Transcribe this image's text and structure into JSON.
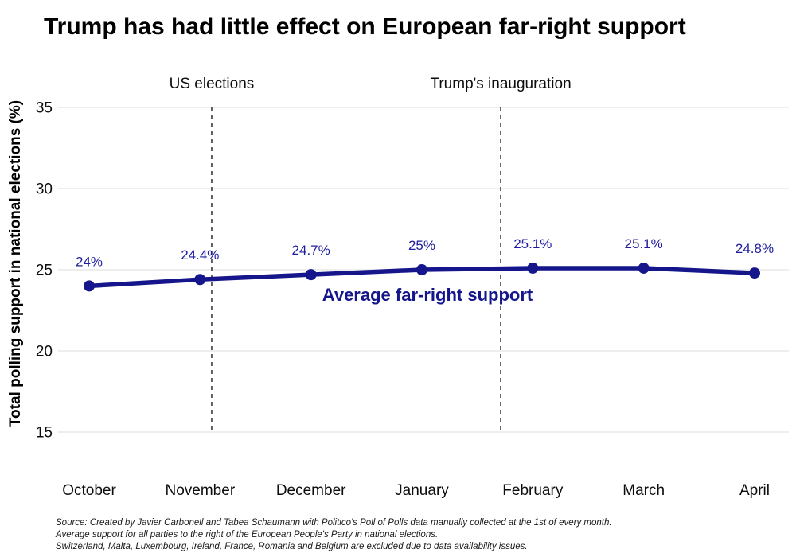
{
  "title": "Trump has had little effect on European far-right support",
  "y_axis": {
    "label": "Total polling support in national elections (%)"
  },
  "chart_data": {
    "type": "line",
    "title": "Trump has had little effect on European far-right support",
    "categories": [
      "October",
      "November",
      "December",
      "January",
      "February",
      "March",
      "April"
    ],
    "series": [
      {
        "name": "Average far-right support",
        "values": [
          24,
          24.4,
          24.7,
          25,
          25.1,
          25.1,
          24.8
        ],
        "point_labels": [
          "24%",
          "24.4%",
          "24.7%",
          "25%",
          "25.1%",
          "25.1%",
          "24.8%"
        ],
        "color": "#15158C"
      }
    ],
    "annotations": [
      {
        "label": "US elections",
        "x_index": 1.105
      },
      {
        "label": "Trump's inauguration",
        "x_index": 3.711
      }
    ],
    "xlabel": "",
    "ylabel": "Total polling support in national elections (%)",
    "ylim": [
      15,
      35
    ],
    "yticks": [
      35,
      30,
      25,
      20,
      15
    ],
    "grid": true,
    "legend_position": "inline-below-line"
  },
  "footer": {
    "line1": "Source: Created by Javier Carbonell and Tabea Schaumann with Politico's Poll of Polls data manually collected at the 1st of every month.",
    "line2": "Average support for all parties to the right of the European People's Party in national elections.",
    "line3": "Switzerland, Malta, Luxembourg, Ireland, France, Romania and Belgium are excluded due to data availability issues."
  },
  "colors": {
    "line": "#15158C",
    "data_label": "#1E1E9E",
    "grid": "#E3E3E3",
    "dashed": "#2E2E2E",
    "text": "#0D0D0D"
  }
}
